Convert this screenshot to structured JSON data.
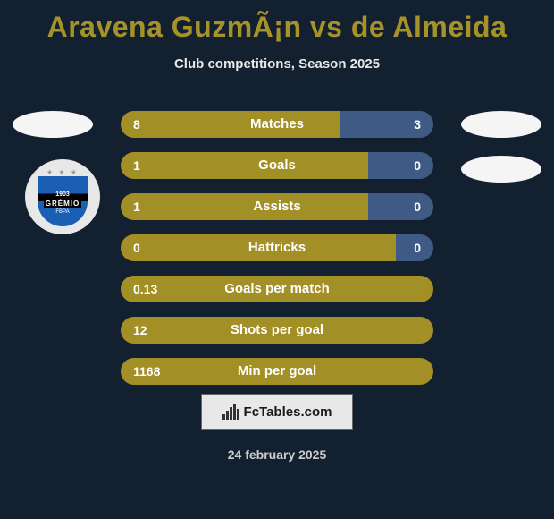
{
  "title": "Aravena GuzmÃ¡n vs de Almeida",
  "subtitle": "Club competitions, Season 2025",
  "club_logo": {
    "year": "1903",
    "name": "GRÊMIO",
    "sub": "FBPA"
  },
  "stats": {
    "rows": [
      {
        "label": "Matches",
        "left": "8",
        "right": "3",
        "left_pct": 70,
        "has_right": true
      },
      {
        "label": "Goals",
        "left": "1",
        "right": "0",
        "left_pct": 79,
        "has_right": true
      },
      {
        "label": "Assists",
        "left": "1",
        "right": "0",
        "left_pct": 79,
        "has_right": true
      },
      {
        "label": "Hattricks",
        "left": "0",
        "right": "0",
        "left_pct": 88,
        "has_right": true
      },
      {
        "label": "Goals per match",
        "left": "0.13",
        "right": "",
        "left_pct": 100,
        "has_right": false
      },
      {
        "label": "Shots per goal",
        "left": "12",
        "right": "",
        "left_pct": 100,
        "has_right": false
      },
      {
        "label": "Min per goal",
        "left": "1168",
        "right": "",
        "left_pct": 100,
        "has_right": false
      }
    ],
    "colors": {
      "left_bar": "#a28f26",
      "right_bar": "#3f5a85",
      "text": "#ffffff"
    }
  },
  "footer_brand": "FcTables.com",
  "date": "24 february 2025",
  "colors": {
    "background": "#13202f",
    "title": "#a69328",
    "subtitle": "#e8e8e8"
  }
}
